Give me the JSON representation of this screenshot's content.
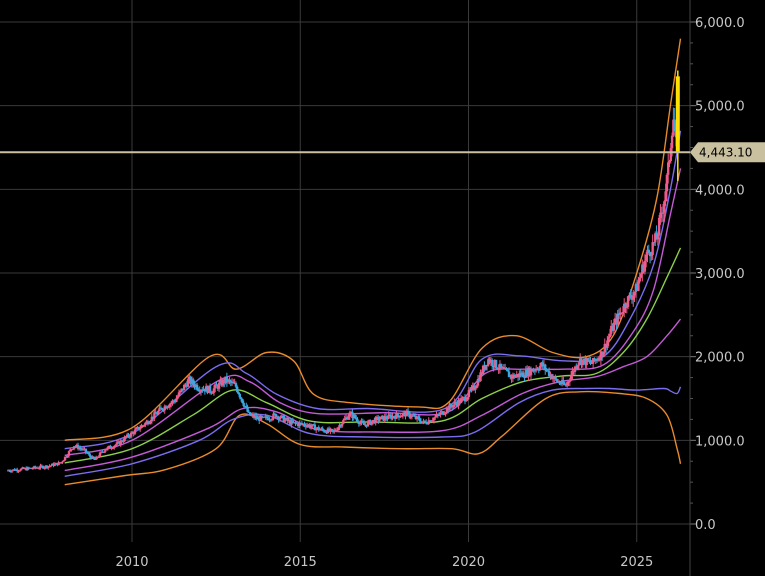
{
  "chart_data": {
    "type": "candlestick-with-bands",
    "title": "",
    "xlabel": "",
    "ylabel": "",
    "x_ticks": [
      "2010",
      "2015",
      "2020",
      "2025"
    ],
    "y_ticks": [
      "0.0",
      "1,000.0",
      "2,000.0",
      "3,000.0",
      "4,000.0",
      "5,000.0",
      "6,000.0"
    ],
    "xlim": [
      2006.3,
      2026.9
    ],
    "ylim": [
      -50,
      6200
    ],
    "grid": true,
    "current_price": 4443.1,
    "current_price_label": "4,443.10",
    "colors": {
      "background": "#000000",
      "grid": "#3a3a3a",
      "up_candle": "#f05a8a",
      "down_candle": "#3aa8e0",
      "last_candle": "#ffe000",
      "price_line": "#c9c0a0",
      "outer_band": "#e98a2c",
      "mid_band": "#7b6cf0",
      "inner_band": "#c45ad8",
      "center_line": "#8ccf4a"
    },
    "price_path": [
      [
        2006.3,
        640
      ],
      [
        2006.9,
        660
      ],
      [
        2007.5,
        690
      ],
      [
        2007.9,
        730
      ],
      [
        2008.3,
        940
      ],
      [
        2008.6,
        880
      ],
      [
        2008.9,
        760
      ],
      [
        2009.2,
        890
      ],
      [
        2009.6,
        960
      ],
      [
        2010.0,
        1080
      ],
      [
        2010.5,
        1230
      ],
      [
        2010.9,
        1380
      ],
      [
        2011.3,
        1480
      ],
      [
        2011.7,
        1720
      ],
      [
        2012.0,
        1630
      ],
      [
        2012.4,
        1600
      ],
      [
        2012.8,
        1720
      ],
      [
        2013.1,
        1650
      ],
      [
        2013.5,
        1300
      ],
      [
        2013.9,
        1250
      ],
      [
        2014.3,
        1300
      ],
      [
        2014.8,
        1200
      ],
      [
        2015.2,
        1190
      ],
      [
        2015.6,
        1130
      ],
      [
        2016.0,
        1100
      ],
      [
        2016.5,
        1320
      ],
      [
        2016.9,
        1180
      ],
      [
        2017.3,
        1250
      ],
      [
        2017.8,
        1290
      ],
      [
        2018.2,
        1320
      ],
      [
        2018.7,
        1210
      ],
      [
        2019.1,
        1290
      ],
      [
        2019.5,
        1410
      ],
      [
        2019.9,
        1500
      ],
      [
        2020.2,
        1640
      ],
      [
        2020.6,
        1970
      ],
      [
        2020.9,
        1880
      ],
      [
        2021.3,
        1760
      ],
      [
        2021.7,
        1800
      ],
      [
        2022.2,
        1900
      ],
      [
        2022.6,
        1720
      ],
      [
        2022.9,
        1650
      ],
      [
        2023.3,
        1960
      ],
      [
        2023.7,
        1920
      ],
      [
        2024.0,
        2050
      ],
      [
        2024.3,
        2350
      ],
      [
        2024.7,
        2650
      ],
      [
        2025.0,
        2800
      ],
      [
        2025.3,
        3200
      ],
      [
        2025.6,
        3400
      ],
      [
        2025.8,
        3800
      ],
      [
        2025.95,
        4200
      ],
      [
        2026.1,
        4900
      ],
      [
        2026.2,
        4443
      ]
    ],
    "bands": {
      "outer_upper": [
        [
          2008.0,
          1000
        ],
        [
          2010.0,
          1150
        ],
        [
          2012.3,
          2000
        ],
        [
          2013.1,
          1850
        ],
        [
          2014.0,
          2050
        ],
        [
          2014.8,
          1950
        ],
        [
          2015.4,
          1550
        ],
        [
          2016.5,
          1450
        ],
        [
          2018.5,
          1400
        ],
        [
          2019.4,
          1450
        ],
        [
          2020.4,
          2100
        ],
        [
          2021.4,
          2250
        ],
        [
          2022.5,
          2050
        ],
        [
          2023.5,
          2000
        ],
        [
          2024.3,
          2250
        ],
        [
          2025.0,
          3000
        ],
        [
          2025.6,
          3900
        ],
        [
          2026.0,
          5000
        ],
        [
          2026.3,
          5800
        ]
      ],
      "outer_lower": [
        [
          2008.0,
          470
        ],
        [
          2009.8,
          580
        ],
        [
          2011.0,
          650
        ],
        [
          2012.5,
          900
        ],
        [
          2013.2,
          1300
        ],
        [
          2014.0,
          1200
        ],
        [
          2015.0,
          950
        ],
        [
          2016.3,
          920
        ],
        [
          2018.0,
          900
        ],
        [
          2019.5,
          900
        ],
        [
          2020.3,
          840
        ],
        [
          2021.0,
          1050
        ],
        [
          2022.3,
          1500
        ],
        [
          2023.3,
          1580
        ],
        [
          2024.5,
          1560
        ],
        [
          2025.3,
          1500
        ],
        [
          2025.9,
          1300
        ],
        [
          2026.2,
          900
        ],
        [
          2026.3,
          720
        ]
      ],
      "mid_upper": [
        [
          2008.0,
          900
        ],
        [
          2010.0,
          1080
        ],
        [
          2012.5,
          1880
        ],
        [
          2013.4,
          1800
        ],
        [
          2014.3,
          1550
        ],
        [
          2015.5,
          1380
        ],
        [
          2017.0,
          1380
        ],
        [
          2019.3,
          1380
        ],
        [
          2020.4,
          1970
        ],
        [
          2021.5,
          2010
        ],
        [
          2022.8,
          1950
        ],
        [
          2024.0,
          2000
        ],
        [
          2024.8,
          2450
        ],
        [
          2025.5,
          3100
        ],
        [
          2026.0,
          4000
        ],
        [
          2026.3,
          4700
        ]
      ],
      "mid_lower": [
        [
          2008.0,
          570
        ],
        [
          2010.0,
          720
        ],
        [
          2012.0,
          1000
        ],
        [
          2013.0,
          1250
        ],
        [
          2014.0,
          1300
        ],
        [
          2015.3,
          1080
        ],
        [
          2017.0,
          1040
        ],
        [
          2019.2,
          1040
        ],
        [
          2020.2,
          1100
        ],
        [
          2021.5,
          1450
        ],
        [
          2022.5,
          1600
        ],
        [
          2023.5,
          1620
        ],
        [
          2024.2,
          1620
        ],
        [
          2025.0,
          1600
        ],
        [
          2025.8,
          1620
        ],
        [
          2026.0,
          1590
        ],
        [
          2026.2,
          1560
        ],
        [
          2026.3,
          1640
        ]
      ],
      "inner_upper": [
        [
          2008.0,
          820
        ],
        [
          2010.0,
          1000
        ],
        [
          2012.6,
          1720
        ],
        [
          2013.5,
          1700
        ],
        [
          2014.4,
          1450
        ],
        [
          2015.5,
          1320
        ],
        [
          2017.5,
          1330
        ],
        [
          2019.4,
          1340
        ],
        [
          2020.5,
          1800
        ],
        [
          2021.6,
          1850
        ],
        [
          2022.8,
          1850
        ],
        [
          2024.0,
          1900
        ],
        [
          2024.9,
          2300
        ],
        [
          2025.5,
          2800
        ],
        [
          2026.0,
          3700
        ],
        [
          2026.3,
          4250
        ]
      ],
      "inner_lower": [
        [
          2008.0,
          640
        ],
        [
          2010.0,
          800
        ],
        [
          2012.3,
          1150
        ],
        [
          2013.3,
          1380
        ],
        [
          2014.3,
          1340
        ],
        [
          2015.5,
          1130
        ],
        [
          2017.3,
          1100
        ],
        [
          2019.3,
          1120
        ],
        [
          2020.4,
          1300
        ],
        [
          2021.6,
          1560
        ],
        [
          2022.7,
          1700
        ],
        [
          2023.8,
          1760
        ],
        [
          2024.6,
          1880
        ],
        [
          2025.3,
          2000
        ],
        [
          2025.9,
          2250
        ],
        [
          2026.3,
          2450
        ]
      ],
      "center": [
        [
          2008.0,
          730
        ],
        [
          2010.0,
          900
        ],
        [
          2011.8,
          1300
        ],
        [
          2013.0,
          1600
        ],
        [
          2014.0,
          1450
        ],
        [
          2015.3,
          1230
        ],
        [
          2017.0,
          1220
        ],
        [
          2019.2,
          1230
        ],
        [
          2020.4,
          1500
        ],
        [
          2021.6,
          1700
        ],
        [
          2022.8,
          1770
        ],
        [
          2023.8,
          1800
        ],
        [
          2024.6,
          2050
        ],
        [
          2025.3,
          2450
        ],
        [
          2025.9,
          2950
        ],
        [
          2026.3,
          3300
        ]
      ]
    }
  }
}
